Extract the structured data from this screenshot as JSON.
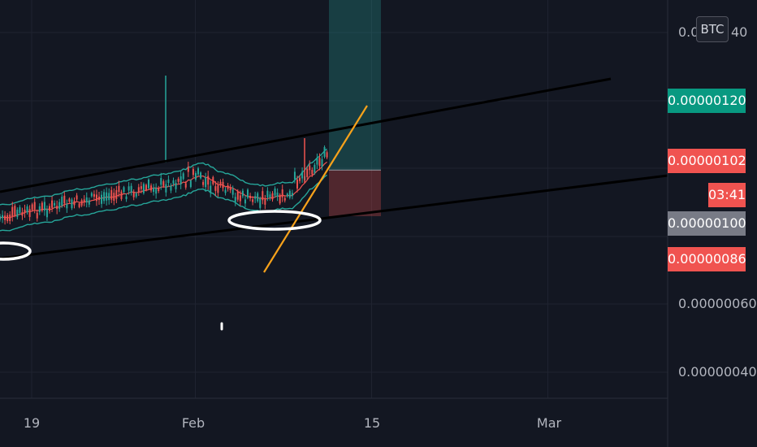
{
  "chart_data": {
    "type": "candlestick",
    "ylim": [
      3.3e-07,
      1.48e-06
    ],
    "y_ticks": [
      "0.0",
      "40",
      "0.00000060",
      "0.00000040"
    ],
    "x_ticks": [
      {
        "label": "19",
        "day": 19
      },
      {
        "label": "Feb",
        "day": 32
      },
      {
        "label": "15",
        "day": 46
      },
      {
        "label": "Mar",
        "day": 60
      }
    ],
    "price_labels": [
      {
        "label": "0.00000120",
        "value": 1.2e-06,
        "color": "#089981"
      },
      {
        "label": "0.00000102",
        "value": 1.02e-06,
        "color": "#f05350"
      },
      {
        "label": "0.00000100",
        "value": 1e-06,
        "color": "#787b86"
      },
      {
        "label": "0.00000086",
        "value": 8.6e-07,
        "color": "#f05350"
      }
    ],
    "ticker": "BTC",
    "countdown": "03:41",
    "colors": {
      "background": "#131722",
      "up": "#26a69a",
      "down": "#ef5350",
      "bands": "#26a69a",
      "middle": "#ef5350",
      "trendline": "#000000",
      "orange_line": "#f7a21b",
      "target_zone": "#26a69a",
      "stop_zone": "#f05350",
      "annotation": "#ffffff"
    }
  }
}
